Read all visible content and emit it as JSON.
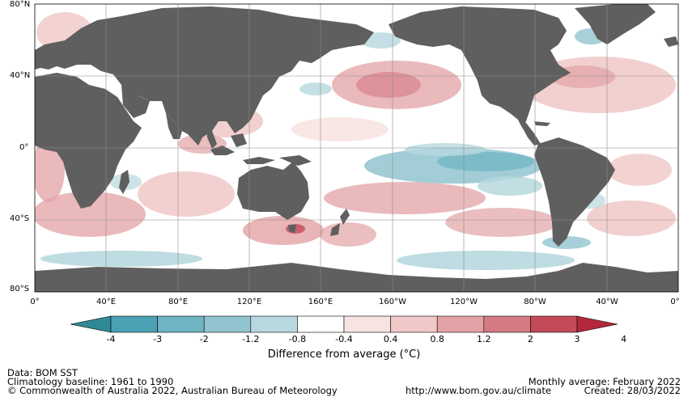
{
  "map": {
    "lat_labels": [
      "80°N",
      "40°N",
      "0°",
      "40°S",
      "80°S"
    ],
    "lon_labels": [
      "0°",
      "40°E",
      "80°E",
      "120°E",
      "160°E",
      "160°W",
      "120°W",
      "80°W",
      "40°W",
      "0°"
    ],
    "colors": {
      "land": "#5f5f5f",
      "ocean_neutral": "#ffffff",
      "grid": "#8c8c8c"
    }
  },
  "colorbar": {
    "ticks": [
      "-4",
      "-3",
      "-2",
      "-1.2",
      "-0.8",
      "-0.4",
      "0.4",
      "0.8",
      "1.2",
      "2",
      "3",
      "4"
    ],
    "colors": [
      "#2f8a98",
      "#4ba0b3",
      "#6fb4c2",
      "#92c4cf",
      "#b7d8de",
      "#ffffff",
      "#f7e4e2",
      "#efc8c7",
      "#e3a2a5",
      "#d47a82",
      "#c34b59",
      "#b3283c"
    ],
    "title": "Difference from average (°C)"
  },
  "footer": {
    "data_source": "Data: BOM SST",
    "baseline": "Climatology baseline: 1961 to 1990",
    "copyright": "© Commonwealth of Australia 2022, Australian Bureau of Meteorology",
    "url": "http://www.bom.gov.au/climate",
    "period": "Monthly average: February 2022",
    "created": "Created: 28/03/2022"
  }
}
